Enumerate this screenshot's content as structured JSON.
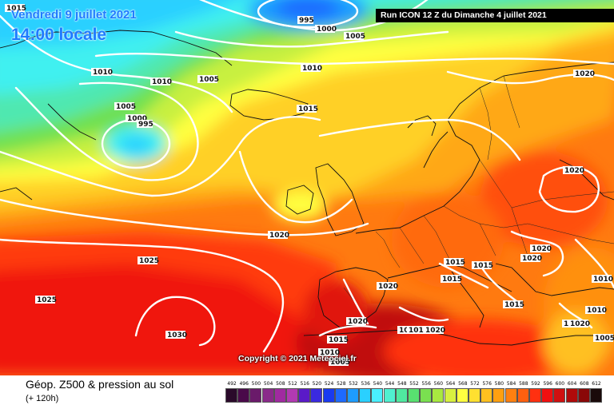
{
  "header": {
    "date": "Vendredi 9 juillet 2021",
    "time": "14:00 locale",
    "run": "Run ICON 12 Z du Dimanche 4 juillet 2021"
  },
  "copyright": "Copyright © 2021 Meteociel.fr",
  "legend": {
    "title": "Géop. Z500 & pression au sol",
    "subtitle": "(+ 120h)",
    "scale": [
      {
        "value": "492",
        "color": "#2a0a2a"
      },
      {
        "value": "496",
        "color": "#4a0a4a"
      },
      {
        "value": "500",
        "color": "#6a1a6a"
      },
      {
        "value": "504",
        "color": "#8a2a8a"
      },
      {
        "value": "508",
        "color": "#a02aa0"
      },
      {
        "value": "512",
        "color": "#b23ab2"
      },
      {
        "value": "516",
        "color": "#5a1ac8"
      },
      {
        "value": "520",
        "color": "#3a2ae0"
      },
      {
        "value": "524",
        "color": "#1a3af0"
      },
      {
        "value": "528",
        "color": "#1e6aff"
      },
      {
        "value": "532",
        "color": "#1e9cff"
      },
      {
        "value": "536",
        "color": "#2ad0ff"
      },
      {
        "value": "540",
        "color": "#4af0ff"
      },
      {
        "value": "544",
        "color": "#50f0d0"
      },
      {
        "value": "548",
        "color": "#50e8a0"
      },
      {
        "value": "552",
        "color": "#58e070"
      },
      {
        "value": "556",
        "color": "#7ae050"
      },
      {
        "value": "560",
        "color": "#a8e840"
      },
      {
        "value": "564",
        "color": "#d8f040"
      },
      {
        "value": "568",
        "color": "#ffff40"
      },
      {
        "value": "572",
        "color": "#ffe030"
      },
      {
        "value": "576",
        "color": "#ffc020"
      },
      {
        "value": "580",
        "color": "#ffa010"
      },
      {
        "value": "584",
        "color": "#ff8010"
      },
      {
        "value": "588",
        "color": "#ff6010"
      },
      {
        "value": "592",
        "color": "#ff3010"
      },
      {
        "value": "596",
        "color": "#f01010"
      },
      {
        "value": "600",
        "color": "#d01010"
      },
      {
        "value": "604",
        "color": "#b00a0a"
      },
      {
        "value": "608",
        "color": "#8a0808"
      },
      {
        "value": "612",
        "color": "#1a0a0a"
      }
    ]
  },
  "isobar_labels": [
    "1015",
    "995",
    "1000",
    "1005",
    "1010",
    "1010",
    "1005",
    "1010",
    "1005",
    "1000",
    "995",
    "1015",
    "1010",
    "1020",
    "1020",
    "1025",
    "1025",
    "1030",
    "1020",
    "1020",
    "1015",
    "1015",
    "1015",
    "1020",
    "1020",
    "1015",
    "1015",
    "1020",
    "1010",
    "1010",
    "1010",
    "1005",
    "1020",
    "1010",
    "1010",
    "1020",
    "1005"
  ]
}
